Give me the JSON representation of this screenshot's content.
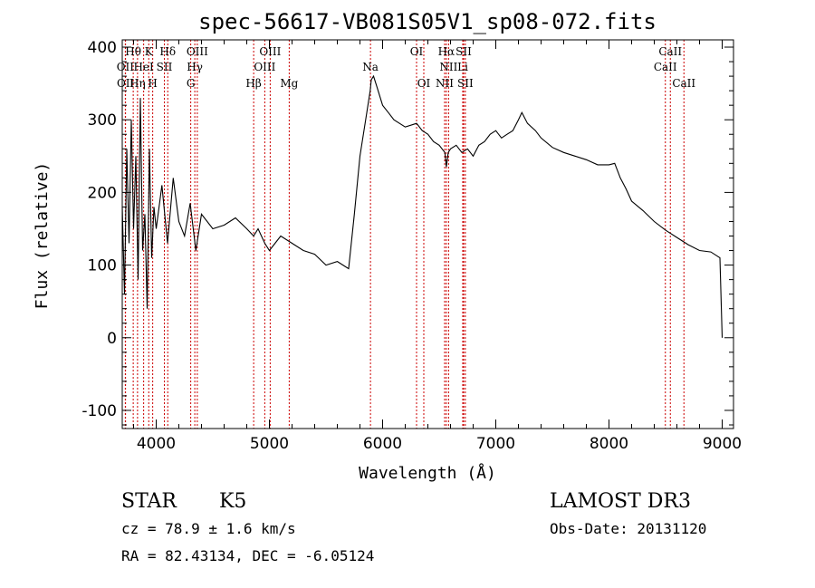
{
  "chart_data": {
    "type": "line",
    "title": "spec-56617-VB081S05V1_sp08-072.fits",
    "xlabel": "Wavelength (Å)",
    "ylabel": "Flux (relative)",
    "xlim": [
      3700,
      9100
    ],
    "ylim": [
      -125,
      410
    ],
    "xticks": [
      4000,
      5000,
      6000,
      7000,
      8000,
      9000
    ],
    "yticks": [
      -100,
      0,
      100,
      200,
      300,
      400
    ],
    "grid": false,
    "series": [
      {
        "x": [
          3700,
          3720,
          3740,
          3760,
          3780,
          3800,
          3820,
          3840,
          3860,
          3880,
          3900,
          3920,
          3940,
          3960,
          3980,
          4000,
          4050,
          4100,
          4150,
          4200,
          4250,
          4300,
          4350,
          4400,
          4500,
          4600,
          4700,
          4800,
          4861,
          4900,
          4959,
          5000,
          5100,
          5200,
          5300,
          5400,
          5500,
          5600,
          5700,
          5750,
          5800,
          5850,
          5890,
          5900,
          5920,
          5950,
          6000,
          6050,
          6100,
          6200,
          6300,
          6350,
          6400,
          6450,
          6500,
          6550,
          6563,
          6580,
          6600,
          6650,
          6700,
          6750,
          6800,
          6850,
          6900,
          6950,
          7000,
          7050,
          7100,
          7150,
          7200,
          7230,
          7280,
          7350,
          7400,
          7500,
          7600,
          7700,
          7800,
          7900,
          8000,
          8050,
          8100,
          8150,
          8200,
          8300,
          8400,
          8500,
          8600,
          8700,
          8800,
          8900,
          8980,
          9000
        ],
        "y": [
          180,
          60,
          260,
          130,
          300,
          150,
          250,
          80,
          330,
          120,
          170,
          40,
          260,
          110,
          180,
          150,
          210,
          130,
          220,
          160,
          140,
          185,
          120,
          170,
          150,
          155,
          165,
          150,
          140,
          150,
          130,
          120,
          140,
          130,
          120,
          115,
          100,
          105,
          95,
          170,
          250,
          300,
          340,
          355,
          360,
          345,
          320,
          310,
          300,
          290,
          295,
          285,
          280,
          270,
          265,
          255,
          235,
          255,
          260,
          265,
          255,
          260,
          250,
          265,
          270,
          280,
          285,
          275,
          280,
          285,
          300,
          310,
          295,
          285,
          275,
          262,
          255,
          250,
          245,
          238,
          238,
          240,
          220,
          205,
          188,
          175,
          160,
          148,
          138,
          128,
          120,
          118,
          110,
          0
        ]
      }
    ],
    "spectral_lines": [
      {
        "name": "Hθ",
        "x": 3797,
        "row": 1
      },
      {
        "name": "OII",
        "x": 3727,
        "row": 2
      },
      {
        "name": "OII",
        "x": 3729,
        "row": 3
      },
      {
        "name": "K",
        "x": 3934,
        "row": 1
      },
      {
        "name": "HeI",
        "x": 3889,
        "row": 2
      },
      {
        "name": "Hη",
        "x": 3835,
        "row": 3
      },
      {
        "name": "H",
        "x": 3969,
        "row": 3
      },
      {
        "name": "Hδ",
        "x": 4102,
        "row": 1
      },
      {
        "name": "SII",
        "x": 4072,
        "row": 2
      },
      {
        "name": "OIII",
        "x": 4363,
        "row": 1
      },
      {
        "name": "Hγ",
        "x": 4341,
        "row": 2
      },
      {
        "name": "G",
        "x": 4305,
        "row": 3
      },
      {
        "name": "OIII",
        "x": 5007,
        "row": 1
      },
      {
        "name": "OIII",
        "x": 4959,
        "row": 2
      },
      {
        "name": "Hβ",
        "x": 4861,
        "row": 3
      },
      {
        "name": "Mg",
        "x": 5175,
        "row": 3
      },
      {
        "name": "Na",
        "x": 5893,
        "row": 2
      },
      {
        "name": "OI",
        "x": 6300,
        "row": 1
      },
      {
        "name": "OI",
        "x": 6364,
        "row": 3
      },
      {
        "name": "Hα",
        "x": 6563,
        "row": 1
      },
      {
        "name": "SII",
        "x": 6716,
        "row": 1
      },
      {
        "name": "NII",
        "x": 6583,
        "row": 2
      },
      {
        "name": "Li",
        "x": 6708,
        "row": 2
      },
      {
        "name": "NII",
        "x": 6548,
        "row": 3
      },
      {
        "name": "SII",
        "x": 6731,
        "row": 3
      },
      {
        "name": "CaII",
        "x": 8542,
        "row": 1
      },
      {
        "name": "CaII",
        "x": 8498,
        "row": 2
      },
      {
        "name": "CaII",
        "x": 8662,
        "row": 3
      }
    ]
  },
  "info": {
    "object_class": "STAR",
    "subclass": "K5",
    "survey": "LAMOST DR3",
    "cz": "cz = 78.9 ± 1.6 km/s",
    "obs_date": "Obs-Date: 20131120",
    "radec": "RA =  82.43134, DEC =  -6.05124"
  },
  "colors": {
    "spectrum": "#000000",
    "line_markers": "#cc0000"
  }
}
